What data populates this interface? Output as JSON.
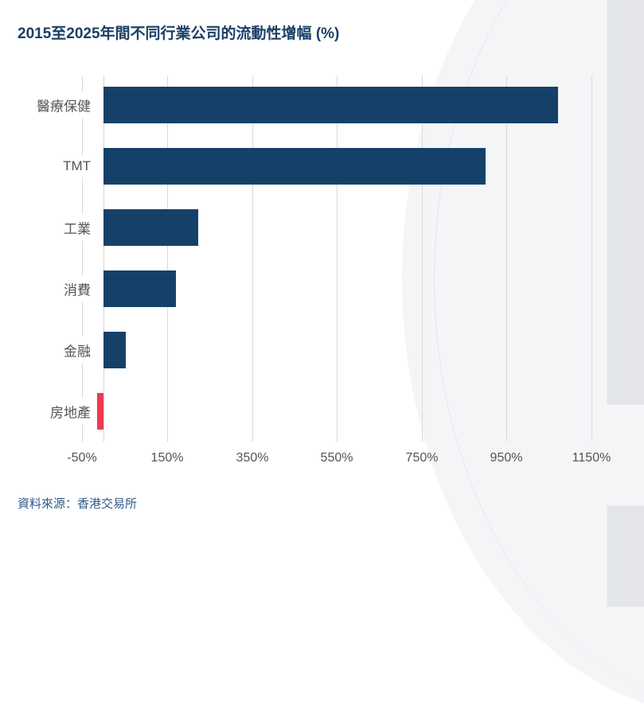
{
  "title": "2015至2025年間不同行業公司的流動性增幅 (%)",
  "source": "資料來源：香港交易所",
  "colors": {
    "positive": "#154169",
    "negative": "#f0394f",
    "title": "#1b3f66",
    "grid": "#d8d8d8"
  },
  "chart_data": {
    "type": "bar",
    "orientation": "horizontal",
    "title": "2015至2025年間不同行業公司的流動性增幅 (%)",
    "xlabel": "",
    "ylabel": "",
    "categories": [
      "醫療保健",
      "TMT",
      "工業",
      "消費",
      "金融",
      "房地產"
    ],
    "values": [
      1072,
      900,
      223,
      171,
      52,
      -15
    ],
    "xlim": [
      -50,
      1250
    ],
    "xticks": [
      "-50%",
      "150%",
      "350%",
      "550%",
      "750%",
      "950%",
      "1150%"
    ],
    "grid": true,
    "legend": null,
    "annotations": [
      "資料來源：香港交易所"
    ]
  }
}
